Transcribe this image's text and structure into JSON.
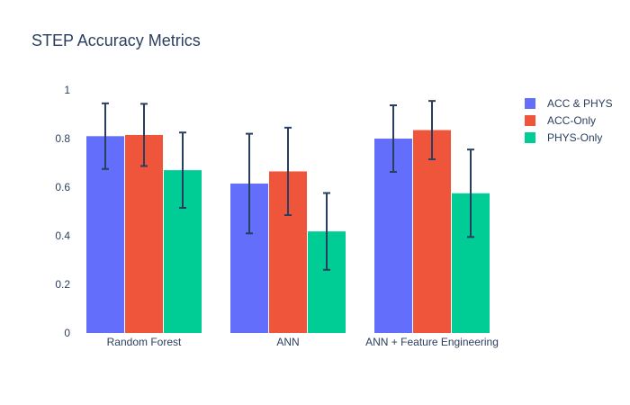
{
  "chart_data": {
    "type": "bar",
    "title": "STEP Accuracy Metrics",
    "categories": [
      "Random Forest",
      "ANN",
      "ANN + Feature Engineering"
    ],
    "ylim": [
      0,
      1
    ],
    "yticks": [
      0,
      0.2,
      0.4,
      0.6,
      0.8,
      1
    ],
    "ytick_labels": [
      "0",
      "0.2",
      "0.4",
      "0.6",
      "0.8",
      "1"
    ],
    "grid": false,
    "legend_position": "top-right",
    "series": [
      {
        "name": "ACC & PHYS",
        "color": "#636efa",
        "values": [
          0.81,
          0.615,
          0.8
        ],
        "errors": [
          0.135,
          0.205,
          0.137
        ]
      },
      {
        "name": "ACC-Only",
        "color": "#ef553b",
        "values": [
          0.815,
          0.665,
          0.835
        ],
        "errors": [
          0.128,
          0.18,
          0.12
        ]
      },
      {
        "name": "PHYS-Only",
        "color": "#00cc96",
        "values": [
          0.67,
          0.418,
          0.575
        ],
        "errors": [
          0.155,
          0.158,
          0.18
        ]
      }
    ],
    "error_bar_color": "#2a3f5f"
  }
}
